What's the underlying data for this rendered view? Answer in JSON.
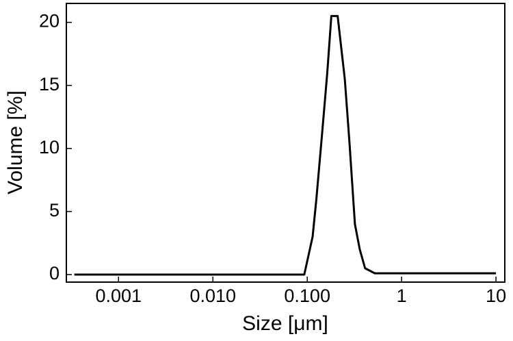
{
  "chart_data": {
    "type": "line",
    "log_x": true,
    "xlabel": "Size [μm]",
    "ylabel": "Volume [%]",
    "x": [
      0.00034,
      0.093,
      0.114,
      0.125,
      0.143,
      0.163,
      0.18,
      0.21,
      0.25,
      0.28,
      0.32,
      0.36,
      0.41,
      0.52,
      10
    ],
    "series": [
      {
        "name": "Volume",
        "color": "#000000",
        "values": [
          0,
          0,
          3,
          6,
          11,
          16,
          20.5,
          20.5,
          15.5,
          10.5,
          4,
          2,
          0.5,
          0.1,
          0.1
        ]
      }
    ],
    "xlim": [
      0.00028,
      12.4
    ],
    "ylim": [
      -0.6,
      21.5
    ],
    "xticks": [
      0.001,
      {
        "value": 0.01,
        "label": "0.010"
      },
      {
        "value": 0.1,
        "label": "0.100"
      },
      1,
      10
    ],
    "yticks": [
      0,
      5,
      10,
      15,
      20
    ]
  }
}
